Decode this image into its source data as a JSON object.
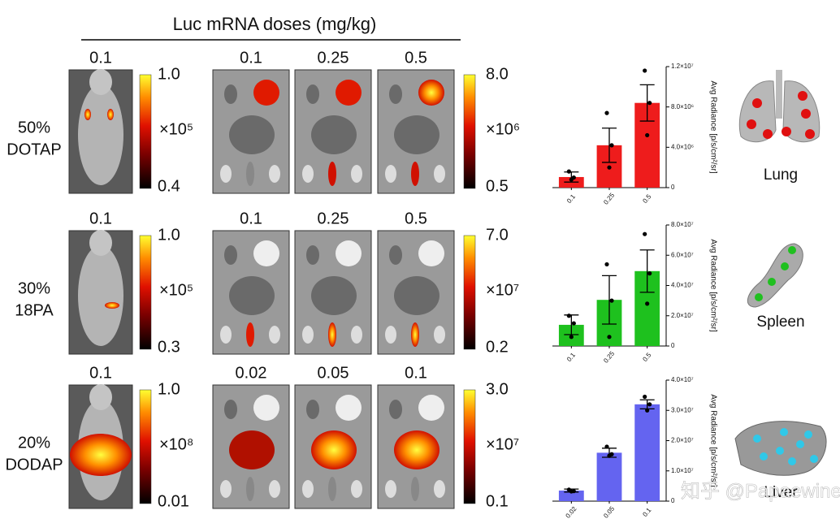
{
  "header": "Luc mRNA doses (mg/kg)",
  "watermark": "知乎 @Papaewine",
  "rows": [
    {
      "label": [
        "50%",
        "DOTAP"
      ],
      "mouse_dose": "0.1",
      "mouse_scale": {
        "max": "1.0",
        "unit": "×10⁵",
        "min": "0.4"
      },
      "organ_doses": [
        "0.1",
        "0.25",
        "0.5"
      ],
      "organ_scale": {
        "max": "8.0",
        "unit": "×10⁶",
        "min": "0.5"
      },
      "organ": "Lung"
    },
    {
      "label": [
        "30%",
        "18PA"
      ],
      "mouse_dose": "0.1",
      "mouse_scale": {
        "max": "1.0",
        "unit": "×10⁵",
        "min": "0.3"
      },
      "organ_doses": [
        "0.1",
        "0.25",
        "0.5"
      ],
      "organ_scale": {
        "max": "7.0",
        "unit": "×10⁷",
        "min": "0.2"
      },
      "organ": "Spleen"
    },
    {
      "label": [
        "20%",
        "DODAP"
      ],
      "mouse_dose": "0.1",
      "mouse_scale": {
        "max": "1.0",
        "unit": "×10⁸",
        "min": "0.01"
      },
      "organ_doses": [
        "0.02",
        "0.05",
        "0.1"
      ],
      "organ_scale": {
        "max": "3.0",
        "unit": "×10⁷",
        "min": "0.1"
      },
      "organ": "Liver"
    }
  ],
  "chart_data": [
    {
      "type": "bar",
      "ylabel": "Avg Radiance [p/s/cm²/sr]",
      "color": "#ee1c1c",
      "categories": [
        "0.1",
        "0.25",
        "0.5"
      ],
      "values": [
        1050000,
        4200000,
        8400000
      ],
      "errors": [
        500000,
        1700000,
        1800000
      ],
      "points": [
        [
          1600000,
          1000000,
          800000
        ],
        [
          7400000,
          4200000,
          2000000
        ],
        [
          11600000,
          8400000,
          5200000
        ]
      ],
      "ylim": [
        0,
        12000000
      ],
      "yticks": [
        0,
        {
          "value": 4000000,
          "label": "4.0×10⁶"
        },
        {
          "value": 8000000,
          "label": "8.0×10⁶"
        },
        {
          "value": 12000000,
          "label": "1.2×10⁷"
        }
      ]
    },
    {
      "type": "bar",
      "ylabel": "Avg Radiance [p/s/cm²/sr]",
      "color": "#1ec11e",
      "categories": [
        "0.1",
        "0.25",
        "0.5"
      ],
      "values": [
        14000000,
        30500000,
        49500000
      ],
      "errors": [
        6500000,
        16000000,
        14000000
      ],
      "points": [
        [
          20000000,
          15000000,
          6000000
        ],
        [
          54000000,
          30000000,
          6000000
        ],
        [
          74000000,
          48000000,
          28000000
        ]
      ],
      "ylim": [
        0,
        80000000
      ],
      "yticks": [
        0,
        {
          "value": 20000000,
          "label": "2.0×10⁷"
        },
        {
          "value": 40000000,
          "label": "4.0×10⁷"
        },
        {
          "value": 60000000,
          "label": "6.0×10⁷"
        },
        {
          "value": 80000000,
          "label": "8.0×10⁷"
        }
      ]
    },
    {
      "type": "bar",
      "ylabel": "Avg Radiance [p/s/cm²/sr]",
      "color": "#6464f0",
      "categories": [
        "0.02",
        "0.05",
        "0.1"
      ],
      "values": [
        3500000,
        16000000,
        32000000
      ],
      "errors": [
        500000,
        1500000,
        1500000
      ],
      "points": [
        [
          3800000,
          3300000,
          3200000
        ],
        [
          18000000,
          15500000,
          15000000
        ],
        [
          34500000,
          32000000,
          30000000
        ]
      ],
      "ylim": [
        0,
        40000000
      ],
      "yticks": [
        0,
        {
          "value": 10000000,
          "label": "1.0×10⁷"
        },
        {
          "value": 20000000,
          "label": "2.0×10⁷"
        },
        {
          "value": 30000000,
          "label": "3.0×10⁷"
        },
        {
          "value": 40000000,
          "label": "4.0×10⁷"
        }
      ]
    }
  ]
}
